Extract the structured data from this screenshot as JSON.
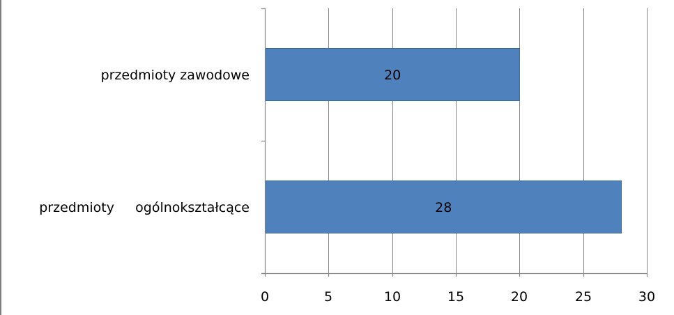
{
  "chart_data": {
    "type": "bar",
    "orientation": "horizontal",
    "categories": [
      "przedmioty zawodowe",
      "przedmioty     ogólnokształcące"
    ],
    "values": [
      20,
      28
    ],
    "data_labels": [
      "20",
      "28"
    ],
    "xlim": [
      0,
      30
    ],
    "x_ticks": [
      0,
      5,
      10,
      15,
      20,
      25,
      30
    ],
    "x_tick_labels": [
      "0",
      "5",
      "10",
      "15",
      "20",
      "25",
      "30"
    ],
    "title": "",
    "xlabel": "",
    "ylabel": "",
    "grid": true,
    "legend": "none",
    "bar_color": "#4F81BD",
    "bar_border_color": "#3A6A9E",
    "grid_color": "#868686"
  }
}
